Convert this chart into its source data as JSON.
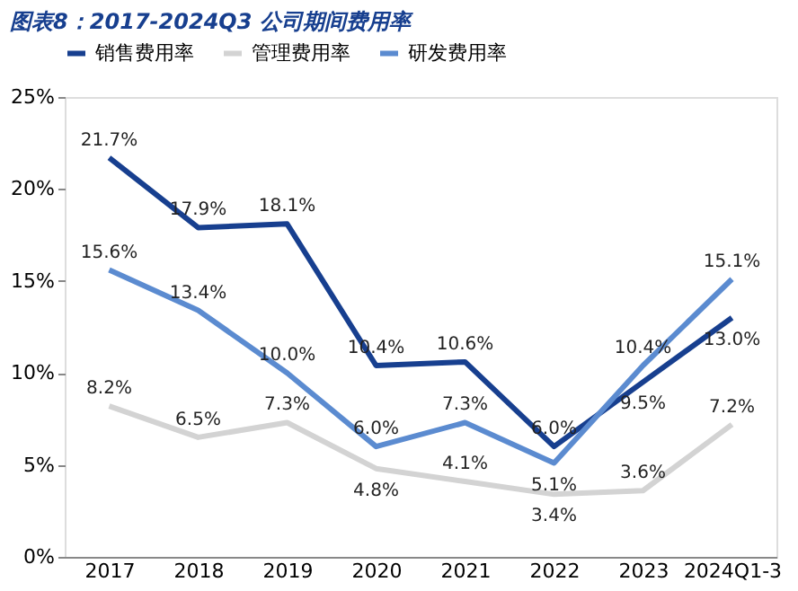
{
  "chart_data": {
    "type": "line",
    "title": "图表8：2017-2024Q3 公司期间费用率",
    "categories": [
      "2017",
      "2018",
      "2019",
      "2020",
      "2021",
      "2022",
      "2023",
      "2024Q1-3"
    ],
    "series": [
      {
        "name": "销售费用率",
        "color": "#173f8f",
        "values": [
          21.7,
          17.9,
          18.1,
          10.4,
          10.6,
          6.0,
          9.5,
          13.0
        ],
        "value_labels": [
          "21.7%",
          "17.9%",
          "18.1%",
          "10.4%",
          "10.6%",
          "6.0%",
          "9.5%",
          "13.0%"
        ]
      },
      {
        "name": "管理费用率",
        "color": "#d3d3d3",
        "values": [
          8.2,
          6.5,
          7.3,
          4.8,
          4.1,
          3.4,
          3.6,
          7.2
        ],
        "value_labels": [
          "8.2%",
          "6.5%",
          "7.3%",
          "4.8%",
          "4.1%",
          "3.4%",
          "3.6%",
          "7.2%"
        ]
      },
      {
        "name": "研发费用率",
        "color": "#5b8bd0",
        "values": [
          15.6,
          13.4,
          10.0,
          6.0,
          7.3,
          5.1,
          10.4,
          15.1
        ],
        "value_labels": [
          "15.6%",
          "13.4%",
          "10.0%",
          "6.0%",
          "7.3%",
          "5.1%",
          "10.4%",
          "15.1%"
        ]
      }
    ],
    "ylim": [
      0,
      25
    ],
    "yticks": [
      {
        "value": 0,
        "label": "0%"
      },
      {
        "value": 5,
        "label": "5%"
      },
      {
        "value": 10,
        "label": "10%"
      },
      {
        "value": 15,
        "label": "15%"
      },
      {
        "value": 20,
        "label": "20%"
      },
      {
        "value": 25,
        "label": "25%"
      }
    ],
    "legend": "top",
    "grid": false,
    "marker": "none",
    "line_style": "solid"
  }
}
